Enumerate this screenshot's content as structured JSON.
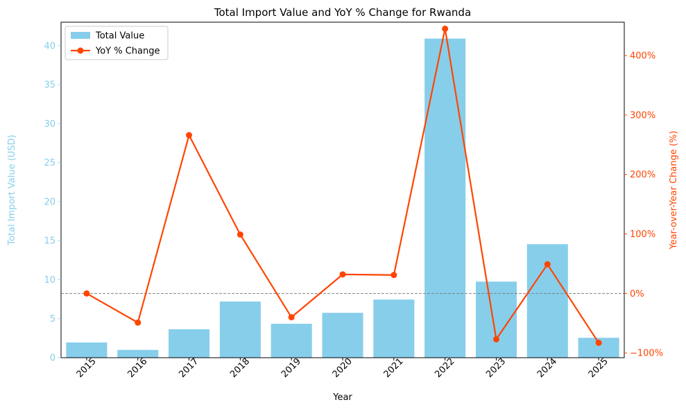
{
  "chart_data": {
    "type": "bar",
    "title": "Total Import Value and YoY % Change for Rwanda",
    "xlabel": "Year",
    "ylabel_left": "Total Import Value (USD)",
    "ylabel_right": "Year-over-Year Change (%)",
    "categories": [
      "2015",
      "2016",
      "2017",
      "2018",
      "2019",
      "2020",
      "2021",
      "2022",
      "2023",
      "2024",
      "2025"
    ],
    "series": [
      {
        "name": "Total Value",
        "type": "bar",
        "axis": "left",
        "color": "#87ceeb",
        "values": [
          1.95,
          1.0,
          3.65,
          7.2,
          4.35,
          5.75,
          7.45,
          40.9,
          9.75,
          14.55,
          2.55
        ]
      },
      {
        "name": "YoY % Change",
        "type": "line",
        "axis": "right",
        "color": "#ff4500",
        "values": [
          0,
          -49,
          266,
          99,
          -40,
          32,
          31,
          445,
          -77,
          49,
          -83
        ]
      }
    ],
    "ylim_left": [
      0,
      43
    ],
    "ylim_right": [
      -108,
      456
    ],
    "yticks_left": [
      "0",
      "5",
      "10",
      "15",
      "20",
      "25",
      "30",
      "35",
      "40"
    ],
    "yticks_right": [
      "−100%",
      "0%",
      "100%",
      "200%",
      "300%",
      "400%"
    ],
    "left_axis_color": "#87ceeb",
    "right_axis_color": "#ff4500",
    "reference_line_right": 0,
    "legend_position": "upper-left",
    "grid": false
  }
}
